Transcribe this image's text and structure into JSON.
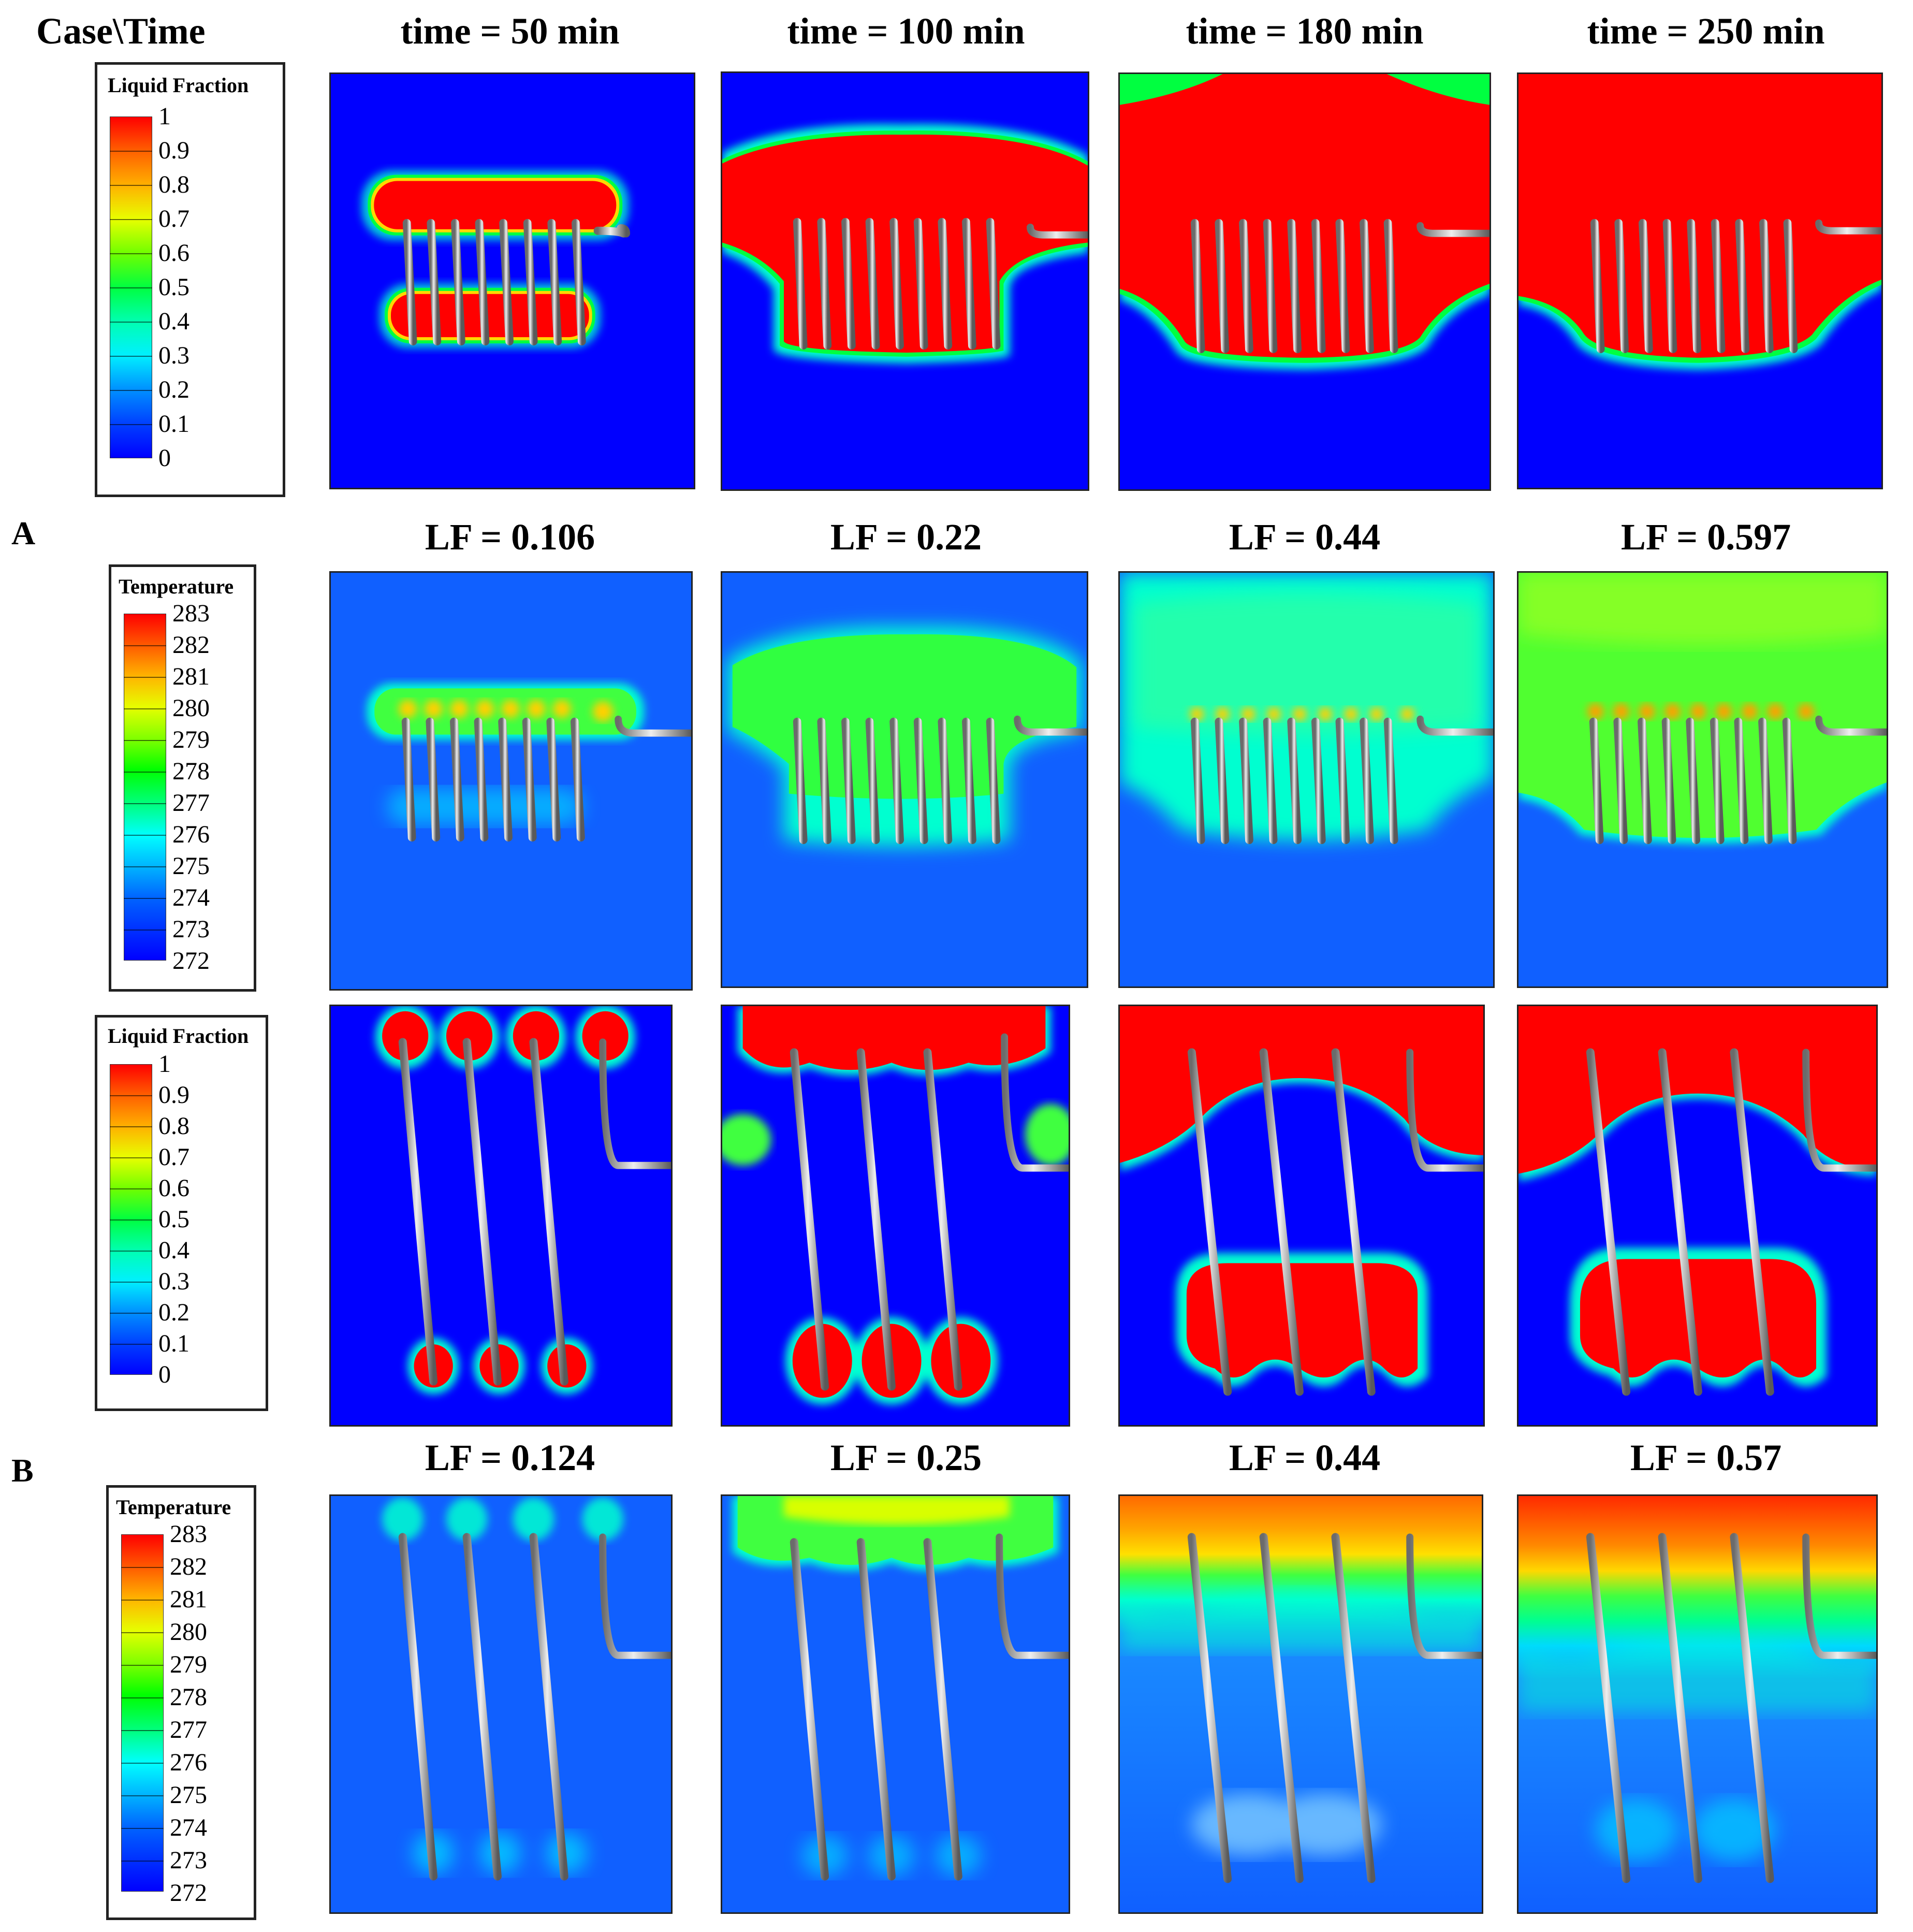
{
  "header": {
    "corner": "Case\\Time",
    "times": [
      "time = 50 min",
      "time = 100 min",
      "time = 180 min",
      "time = 250 min"
    ]
  },
  "cases": {
    "a": {
      "label": "A",
      "lf_values": [
        "LF = 0.106",
        "LF = 0.22",
        "LF = 0.44",
        "LF = 0.597"
      ]
    },
    "b": {
      "label": "B",
      "lf_values": [
        "LF = 0.124",
        "LF = 0.25",
        "LF = 0.44",
        "LF = 0.57"
      ]
    }
  },
  "legends": {
    "liquid_fraction": {
      "title": "Liquid Fraction",
      "labels": [
        "1",
        "0.9",
        "0.8",
        "0.7",
        "0.6",
        "0.5",
        "0.4",
        "0.3",
        "0.2",
        "0.1",
        "0"
      ]
    },
    "temperature": {
      "title": "Temperature",
      "labels": [
        "283",
        "282",
        "281",
        "280",
        "279",
        "278",
        "277",
        "276",
        "275",
        "274",
        "273",
        "272"
      ]
    }
  },
  "colors": {
    "solid": "#0000ff",
    "liquid": "#ff0000",
    "temp_cold": "#1060ff",
    "temp_warm": "#ff6a00",
    "pipe": "#9a9a9a"
  }
}
